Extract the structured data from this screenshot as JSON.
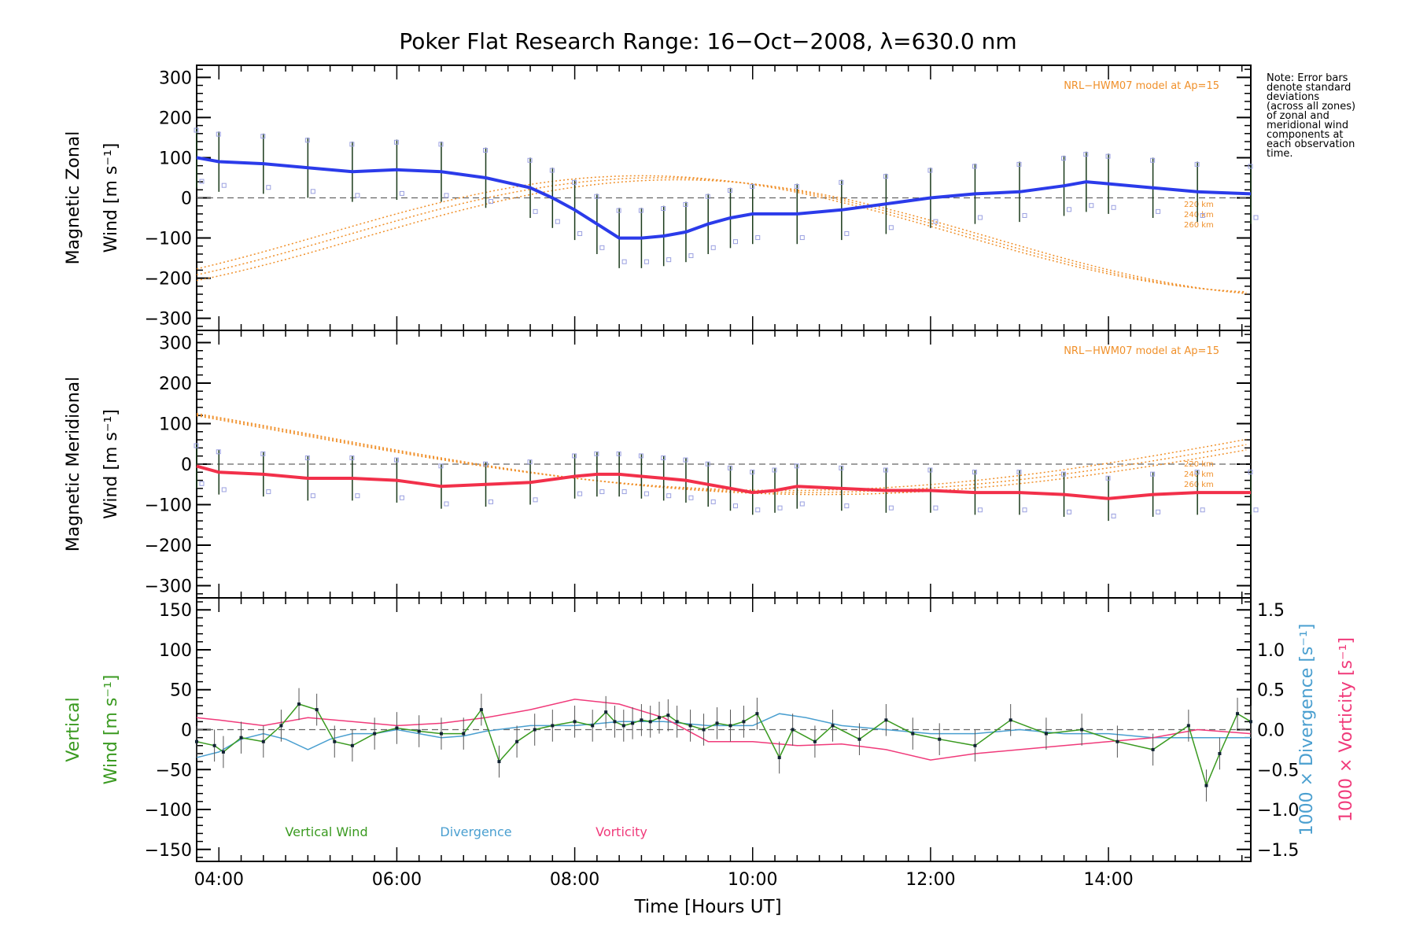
{
  "figure": {
    "title": "Poker Flat Research Range: 16−Oct−2008, λ=630.0 nm",
    "note": [
      "Note: Error bars",
      "denote standard",
      "deviations",
      "(across all zones)",
      "of zonal and",
      "meridional wind",
      "components at",
      "each observation",
      "time."
    ],
    "xlabel": "Time [Hours UT]",
    "xticks": [
      "04:00",
      "06:00",
      "08:00",
      "10:00",
      "12:00",
      "14:00"
    ]
  },
  "colors": {
    "zonal": "#2b3bea",
    "meridional": "#f2304a",
    "model": "#f0902a",
    "vertical": "#3a9a20",
    "divergence": "#4a9fd0",
    "vorticity": "#f03a7a",
    "scatter": "#9aa0e0",
    "errbar": "#1a3a1a"
  },
  "chart_data": [
    {
      "type": "line",
      "panel": "zonal",
      "ylabel_line1": "Magnetic Zonal",
      "ylabel_line2": "Wind [m s⁻¹]",
      "ylim": [
        -330,
        330
      ],
      "yticks": [
        "300",
        "200",
        "100",
        "0",
        "−100",
        "−200",
        "−300"
      ],
      "xlim": [
        3.75,
        15.6
      ],
      "model_label": "NRL−HWM07 model at Ap=15",
      "altitudes": [
        "220 km",
        "240 km",
        "260 km"
      ],
      "series": [
        {
          "name": "Zonal wind",
          "x": [
            3.75,
            4.0,
            4.5,
            5.0,
            5.5,
            6.0,
            6.5,
            7.0,
            7.5,
            7.75,
            8.0,
            8.25,
            8.5,
            8.75,
            9.0,
            9.25,
            9.5,
            9.75,
            10.0,
            10.5,
            11.0,
            11.5,
            12.0,
            12.5,
            13.0,
            13.5,
            13.75,
            14.0,
            14.5,
            15.0,
            15.6
          ],
          "y": [
            100,
            90,
            85,
            75,
            65,
            70,
            65,
            50,
            25,
            0,
            -30,
            -65,
            -100,
            -100,
            -95,
            -85,
            -65,
            -50,
            -40,
            -40,
            -30,
            -15,
            0,
            10,
            15,
            30,
            40,
            35,
            25,
            15,
            10
          ]
        }
      ]
    },
    {
      "type": "line",
      "panel": "meridional",
      "ylabel_line1": "Magnetic Meridional",
      "ylabel_line2": "Wind [m s⁻¹]",
      "ylim": [
        -330,
        330
      ],
      "yticks": [
        "300",
        "200",
        "100",
        "0",
        "−100",
        "−200",
        "−300"
      ],
      "xlim": [
        3.75,
        15.6
      ],
      "model_label": "NRL−HWM07 model at Ap=15",
      "altitudes": [
        "220 km",
        "240 km",
        "260 km"
      ],
      "series": [
        {
          "name": "Meridional wind",
          "x": [
            3.75,
            4.0,
            4.5,
            5.0,
            5.5,
            6.0,
            6.5,
            7.0,
            7.5,
            8.0,
            8.25,
            8.5,
            8.75,
            9.0,
            9.25,
            9.5,
            9.75,
            10.0,
            10.25,
            10.5,
            11.0,
            11.5,
            12.0,
            12.5,
            13.0,
            13.5,
            14.0,
            14.5,
            15.0,
            15.6
          ],
          "y": [
            -5,
            -20,
            -25,
            -35,
            -35,
            -40,
            -55,
            -50,
            -45,
            -30,
            -25,
            -25,
            -30,
            -35,
            -40,
            -50,
            -60,
            -70,
            -65,
            -55,
            -60,
            -65,
            -65,
            -70,
            -70,
            -75,
            -85,
            -75,
            -70,
            -70
          ]
        }
      ]
    },
    {
      "type": "line",
      "panel": "vertical",
      "ylabel_line1": "Vertical",
      "ylabel_line2": "Wind [m s⁻¹]",
      "ylim": [
        -165,
        165
      ],
      "yticks": [
        "150",
        "100",
        "50",
        "0",
        "−50",
        "−100",
        "−150"
      ],
      "y2lim": [
        -1.65,
        1.65
      ],
      "y2ticks": [
        "1.5",
        "1.0",
        "0.5",
        "0.0",
        "−0.5",
        "−1.0",
        "−1.5"
      ],
      "y2label_div": "1000 × Divergence [s⁻¹]",
      "y2label_vort": "1000 × Vorticity [s⁻¹]",
      "legend": [
        "Vertical Wind",
        "Divergence",
        "Vorticity"
      ],
      "xlim": [
        3.75,
        15.6
      ],
      "series": [
        {
          "name": "Vertical Wind",
          "x": [
            3.75,
            3.95,
            4.05,
            4.25,
            4.5,
            4.7,
            4.9,
            5.1,
            5.3,
            5.5,
            5.75,
            6.0,
            6.25,
            6.5,
            6.75,
            6.95,
            7.15,
            7.35,
            7.55,
            7.75,
            8.0,
            8.2,
            8.35,
            8.45,
            8.55,
            8.65,
            8.75,
            8.85,
            8.95,
            9.05,
            9.15,
            9.3,
            9.45,
            9.6,
            9.75,
            9.9,
            10.05,
            10.3,
            10.45,
            10.7,
            10.9,
            11.2,
            11.5,
            11.8,
            12.1,
            12.5,
            12.9,
            13.3,
            13.7,
            14.1,
            14.5,
            14.9,
            15.1,
            15.25,
            15.45,
            15.6
          ],
          "y": [
            -15,
            -20,
            -28,
            -10,
            -15,
            5,
            32,
            25,
            -15,
            -20,
            -5,
            2,
            -2,
            -5,
            -5,
            25,
            -40,
            -15,
            0,
            5,
            10,
            5,
            22,
            10,
            5,
            8,
            12,
            10,
            15,
            18,
            10,
            5,
            0,
            8,
            5,
            10,
            20,
            -35,
            0,
            -15,
            5,
            -12,
            12,
            -5,
            -12,
            -20,
            12,
            -5,
            0,
            -15,
            -25,
            5,
            -70,
            -30,
            20,
            10
          ]
        },
        {
          "name": "Divergence",
          "x": [
            3.75,
            4.0,
            4.25,
            4.5,
            4.75,
            5.0,
            5.25,
            5.5,
            5.75,
            6.0,
            6.25,
            6.5,
            6.75,
            7.0,
            7.5,
            8.0,
            8.5,
            9.0,
            9.5,
            10.0,
            10.3,
            10.6,
            11.0,
            11.5,
            12.0,
            12.5,
            13.0,
            13.5,
            14.0,
            14.5,
            15.0,
            15.6
          ],
          "y": [
            -0.35,
            -0.28,
            -0.12,
            -0.05,
            -0.12,
            -0.25,
            -0.12,
            -0.05,
            -0.05,
            0.0,
            -0.05,
            -0.1,
            -0.08,
            -0.02,
            0.05,
            0.05,
            0.1,
            0.1,
            0.05,
            0.05,
            0.2,
            0.15,
            0.05,
            0.0,
            -0.05,
            -0.05,
            0.0,
            -0.05,
            -0.05,
            -0.1,
            -0.1,
            -0.1
          ]
        },
        {
          "name": "Vorticity",
          "x": [
            3.75,
            4.0,
            4.5,
            5.0,
            5.5,
            6.0,
            6.5,
            7.0,
            7.5,
            8.0,
            8.5,
            9.0,
            9.5,
            10.0,
            10.5,
            11.0,
            11.5,
            12.0,
            12.5,
            13.0,
            13.5,
            14.0,
            14.5,
            15.0,
            15.6
          ],
          "y": [
            0.15,
            0.12,
            0.05,
            0.15,
            0.1,
            0.05,
            0.08,
            0.15,
            0.25,
            0.38,
            0.32,
            0.15,
            -0.15,
            -0.15,
            -0.2,
            -0.18,
            -0.25,
            -0.38,
            -0.3,
            -0.25,
            -0.2,
            -0.15,
            -0.1,
            0.0,
            -0.05
          ]
        }
      ]
    }
  ]
}
